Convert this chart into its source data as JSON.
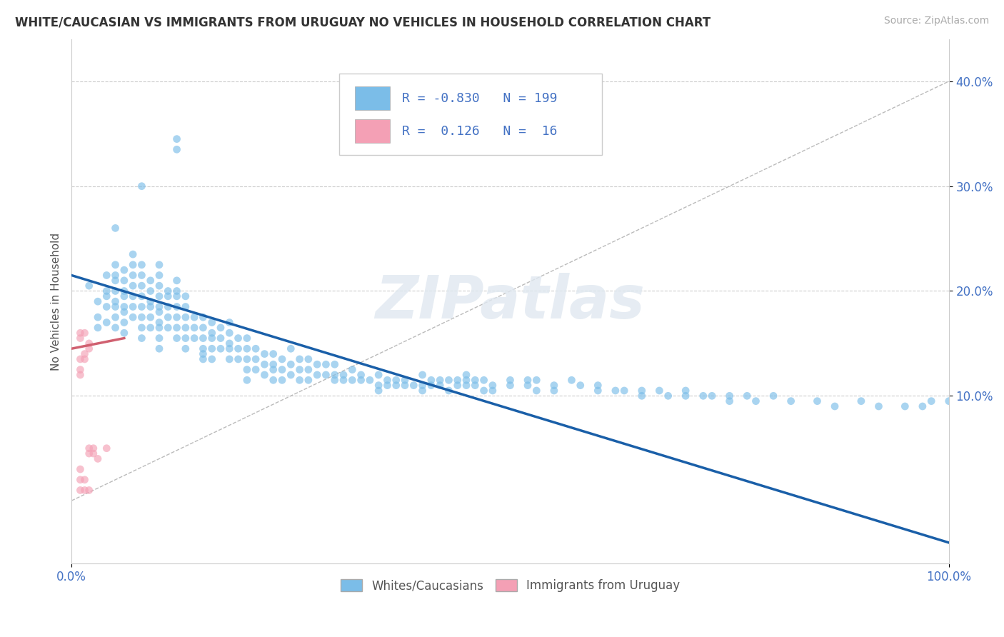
{
  "title": "WHITE/CAUCASIAN VS IMMIGRANTS FROM URUGUAY NO VEHICLES IN HOUSEHOLD CORRELATION CHART",
  "source": "Source: ZipAtlas.com",
  "ylabel": "No Vehicles in Household",
  "xlim": [
    0.0,
    1.0
  ],
  "ylim": [
    -0.06,
    0.44
  ],
  "yticks": [
    0.1,
    0.2,
    0.3,
    0.4
  ],
  "ytick_labels": [
    "10.0%",
    "20.0%",
    "30.0%",
    "40.0%"
  ],
  "xtick_labels": [
    "0.0%",
    "100.0%"
  ],
  "watermark": "ZIPatlas",
  "blue_color": "#7bbde8",
  "pink_color": "#f4a0b5",
  "blue_line_color": "#1a5fa8",
  "pink_line_color": "#d06070",
  "scatter_alpha": 0.65,
  "scatter_size": 60,
  "blue_scatter": [
    [
      0.02,
      0.205
    ],
    [
      0.03,
      0.19
    ],
    [
      0.03,
      0.175
    ],
    [
      0.03,
      0.165
    ],
    [
      0.04,
      0.215
    ],
    [
      0.04,
      0.2
    ],
    [
      0.04,
      0.195
    ],
    [
      0.04,
      0.185
    ],
    [
      0.04,
      0.17
    ],
    [
      0.05,
      0.26
    ],
    [
      0.05,
      0.225
    ],
    [
      0.05,
      0.215
    ],
    [
      0.05,
      0.21
    ],
    [
      0.05,
      0.2
    ],
    [
      0.05,
      0.19
    ],
    [
      0.05,
      0.185
    ],
    [
      0.05,
      0.175
    ],
    [
      0.05,
      0.165
    ],
    [
      0.06,
      0.22
    ],
    [
      0.06,
      0.21
    ],
    [
      0.06,
      0.2
    ],
    [
      0.06,
      0.195
    ],
    [
      0.06,
      0.185
    ],
    [
      0.06,
      0.18
    ],
    [
      0.06,
      0.17
    ],
    [
      0.06,
      0.16
    ],
    [
      0.07,
      0.235
    ],
    [
      0.07,
      0.225
    ],
    [
      0.07,
      0.215
    ],
    [
      0.07,
      0.205
    ],
    [
      0.07,
      0.195
    ],
    [
      0.07,
      0.185
    ],
    [
      0.07,
      0.175
    ],
    [
      0.08,
      0.3
    ],
    [
      0.08,
      0.225
    ],
    [
      0.08,
      0.215
    ],
    [
      0.08,
      0.205
    ],
    [
      0.08,
      0.195
    ],
    [
      0.08,
      0.185
    ],
    [
      0.08,
      0.175
    ],
    [
      0.08,
      0.165
    ],
    [
      0.08,
      0.155
    ],
    [
      0.09,
      0.21
    ],
    [
      0.09,
      0.2
    ],
    [
      0.09,
      0.19
    ],
    [
      0.09,
      0.185
    ],
    [
      0.09,
      0.175
    ],
    [
      0.09,
      0.165
    ],
    [
      0.1,
      0.225
    ],
    [
      0.1,
      0.215
    ],
    [
      0.1,
      0.205
    ],
    [
      0.1,
      0.195
    ],
    [
      0.1,
      0.185
    ],
    [
      0.1,
      0.18
    ],
    [
      0.1,
      0.17
    ],
    [
      0.1,
      0.165
    ],
    [
      0.1,
      0.155
    ],
    [
      0.1,
      0.145
    ],
    [
      0.11,
      0.2
    ],
    [
      0.11,
      0.195
    ],
    [
      0.11,
      0.185
    ],
    [
      0.11,
      0.175
    ],
    [
      0.11,
      0.165
    ],
    [
      0.12,
      0.345
    ],
    [
      0.12,
      0.335
    ],
    [
      0.12,
      0.21
    ],
    [
      0.12,
      0.2
    ],
    [
      0.12,
      0.195
    ],
    [
      0.12,
      0.185
    ],
    [
      0.12,
      0.175
    ],
    [
      0.12,
      0.165
    ],
    [
      0.12,
      0.155
    ],
    [
      0.13,
      0.195
    ],
    [
      0.13,
      0.185
    ],
    [
      0.13,
      0.175
    ],
    [
      0.13,
      0.165
    ],
    [
      0.13,
      0.155
    ],
    [
      0.13,
      0.145
    ],
    [
      0.14,
      0.175
    ],
    [
      0.14,
      0.165
    ],
    [
      0.14,
      0.155
    ],
    [
      0.15,
      0.175
    ],
    [
      0.15,
      0.165
    ],
    [
      0.15,
      0.155
    ],
    [
      0.15,
      0.145
    ],
    [
      0.15,
      0.14
    ],
    [
      0.15,
      0.135
    ],
    [
      0.16,
      0.17
    ],
    [
      0.16,
      0.16
    ],
    [
      0.16,
      0.155
    ],
    [
      0.16,
      0.145
    ],
    [
      0.16,
      0.135
    ],
    [
      0.17,
      0.165
    ],
    [
      0.17,
      0.155
    ],
    [
      0.17,
      0.145
    ],
    [
      0.18,
      0.17
    ],
    [
      0.18,
      0.16
    ],
    [
      0.18,
      0.15
    ],
    [
      0.18,
      0.145
    ],
    [
      0.18,
      0.135
    ],
    [
      0.19,
      0.155
    ],
    [
      0.19,
      0.145
    ],
    [
      0.19,
      0.135
    ],
    [
      0.2,
      0.155
    ],
    [
      0.2,
      0.145
    ],
    [
      0.2,
      0.135
    ],
    [
      0.2,
      0.125
    ],
    [
      0.2,
      0.115
    ],
    [
      0.21,
      0.145
    ],
    [
      0.21,
      0.135
    ],
    [
      0.21,
      0.125
    ],
    [
      0.22,
      0.14
    ],
    [
      0.22,
      0.13
    ],
    [
      0.22,
      0.12
    ],
    [
      0.23,
      0.14
    ],
    [
      0.23,
      0.13
    ],
    [
      0.23,
      0.125
    ],
    [
      0.23,
      0.115
    ],
    [
      0.24,
      0.135
    ],
    [
      0.24,
      0.125
    ],
    [
      0.24,
      0.115
    ],
    [
      0.25,
      0.145
    ],
    [
      0.25,
      0.13
    ],
    [
      0.25,
      0.12
    ],
    [
      0.26,
      0.135
    ],
    [
      0.26,
      0.125
    ],
    [
      0.26,
      0.115
    ],
    [
      0.27,
      0.135
    ],
    [
      0.27,
      0.125
    ],
    [
      0.27,
      0.115
    ],
    [
      0.28,
      0.13
    ],
    [
      0.28,
      0.12
    ],
    [
      0.29,
      0.13
    ],
    [
      0.29,
      0.12
    ],
    [
      0.3,
      0.13
    ],
    [
      0.3,
      0.12
    ],
    [
      0.3,
      0.115
    ],
    [
      0.31,
      0.12
    ],
    [
      0.31,
      0.115
    ],
    [
      0.32,
      0.125
    ],
    [
      0.32,
      0.115
    ],
    [
      0.33,
      0.12
    ],
    [
      0.33,
      0.115
    ],
    [
      0.34,
      0.115
    ],
    [
      0.35,
      0.12
    ],
    [
      0.35,
      0.11
    ],
    [
      0.35,
      0.105
    ],
    [
      0.36,
      0.115
    ],
    [
      0.36,
      0.11
    ],
    [
      0.37,
      0.115
    ],
    [
      0.37,
      0.11
    ],
    [
      0.38,
      0.115
    ],
    [
      0.38,
      0.11
    ],
    [
      0.39,
      0.11
    ],
    [
      0.4,
      0.12
    ],
    [
      0.4,
      0.11
    ],
    [
      0.4,
      0.105
    ],
    [
      0.41,
      0.115
    ],
    [
      0.41,
      0.11
    ],
    [
      0.42,
      0.115
    ],
    [
      0.42,
      0.11
    ],
    [
      0.43,
      0.115
    ],
    [
      0.43,
      0.105
    ],
    [
      0.44,
      0.115
    ],
    [
      0.44,
      0.11
    ],
    [
      0.45,
      0.12
    ],
    [
      0.45,
      0.115
    ],
    [
      0.45,
      0.11
    ],
    [
      0.46,
      0.115
    ],
    [
      0.46,
      0.11
    ],
    [
      0.47,
      0.115
    ],
    [
      0.47,
      0.105
    ],
    [
      0.48,
      0.11
    ],
    [
      0.48,
      0.105
    ],
    [
      0.5,
      0.115
    ],
    [
      0.5,
      0.11
    ],
    [
      0.52,
      0.115
    ],
    [
      0.52,
      0.11
    ],
    [
      0.53,
      0.115
    ],
    [
      0.53,
      0.105
    ],
    [
      0.55,
      0.11
    ],
    [
      0.55,
      0.105
    ],
    [
      0.57,
      0.115
    ],
    [
      0.58,
      0.11
    ],
    [
      0.6,
      0.11
    ],
    [
      0.6,
      0.105
    ],
    [
      0.62,
      0.105
    ],
    [
      0.63,
      0.105
    ],
    [
      0.65,
      0.105
    ],
    [
      0.65,
      0.1
    ],
    [
      0.67,
      0.105
    ],
    [
      0.68,
      0.1
    ],
    [
      0.7,
      0.105
    ],
    [
      0.7,
      0.1
    ],
    [
      0.72,
      0.1
    ],
    [
      0.73,
      0.1
    ],
    [
      0.75,
      0.1
    ],
    [
      0.75,
      0.095
    ],
    [
      0.77,
      0.1
    ],
    [
      0.78,
      0.095
    ],
    [
      0.8,
      0.1
    ],
    [
      0.82,
      0.095
    ],
    [
      0.85,
      0.095
    ],
    [
      0.87,
      0.09
    ],
    [
      0.9,
      0.095
    ],
    [
      0.92,
      0.09
    ],
    [
      0.95,
      0.09
    ],
    [
      0.97,
      0.09
    ],
    [
      0.98,
      0.095
    ],
    [
      1.0,
      0.095
    ]
  ],
  "pink_scatter": [
    [
      0.01,
      0.16
    ],
    [
      0.01,
      0.155
    ],
    [
      0.01,
      0.135
    ],
    [
      0.01,
      0.125
    ],
    [
      0.01,
      0.12
    ],
    [
      0.015,
      0.16
    ],
    [
      0.015,
      0.14
    ],
    [
      0.015,
      0.135
    ],
    [
      0.02,
      0.15
    ],
    [
      0.02,
      0.145
    ],
    [
      0.02,
      0.05
    ],
    [
      0.02,
      0.045
    ],
    [
      0.025,
      0.05
    ],
    [
      0.025,
      0.045
    ],
    [
      0.03,
      0.04
    ],
    [
      0.04,
      0.05
    ],
    [
      0.01,
      0.03
    ],
    [
      0.01,
      0.02
    ],
    [
      0.01,
      0.01
    ],
    [
      0.015,
      0.02
    ],
    [
      0.015,
      0.01
    ],
    [
      0.02,
      0.01
    ]
  ],
  "blue_trendline": [
    [
      0.0,
      0.215
    ],
    [
      1.0,
      -0.04
    ]
  ],
  "pink_trendline": [
    [
      0.0,
      0.145
    ],
    [
      0.06,
      0.155
    ]
  ],
  "diag_line": [
    [
      0.0,
      0.0
    ],
    [
      1.0,
      0.4
    ]
  ],
  "grid_color": "#cccccc",
  "bg_color": "#ffffff"
}
